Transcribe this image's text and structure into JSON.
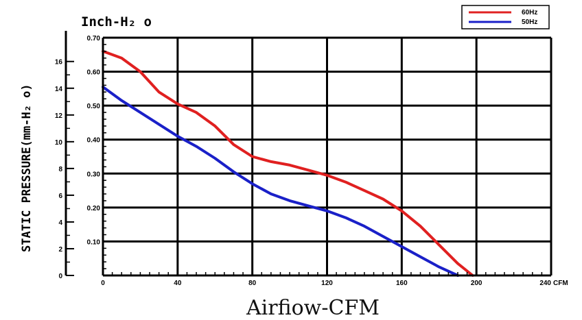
{
  "chart_data": {
    "type": "line",
    "unit_title": "Inch-H₂ o",
    "xlabel": "Airfiow-CFM",
    "ylabel": "STATIC PRESSURE(mm-H₂ o)",
    "xlim": [
      0,
      240
    ],
    "ylim": [
      0,
      0.7
    ],
    "x_ticks": [
      0,
      40,
      80,
      120,
      160,
      200,
      240
    ],
    "x_tick_labels": [
      "0",
      "40",
      "80",
      "120",
      "160",
      "200",
      "240"
    ],
    "x_unit": "CFM",
    "y_ticks_inch": [
      0.1,
      0.2,
      0.3,
      0.4,
      0.5,
      0.6,
      0.7
    ],
    "y_tick_labels_inch": [
      "0.10",
      "0.20",
      "0.30",
      "0.40",
      "0.50",
      "0.60",
      "0.70"
    ],
    "y_ticks_mm": [
      0,
      2,
      4,
      6,
      8,
      10,
      12,
      14,
      16
    ],
    "y_tick_labels_mm": [
      "0",
      "2",
      "4",
      "6",
      "8",
      "10",
      "12",
      "14",
      "16"
    ],
    "grid": true,
    "legend_position": "top-right",
    "series": [
      {
        "name": "60Hz",
        "color": "#e02020",
        "x": [
          0,
          10,
          20,
          30,
          40,
          50,
          60,
          70,
          80,
          90,
          100,
          110,
          120,
          130,
          140,
          150,
          160,
          170,
          180,
          190,
          198
        ],
        "y": [
          0.66,
          0.64,
          0.6,
          0.54,
          0.505,
          0.48,
          0.44,
          0.385,
          0.35,
          0.335,
          0.325,
          0.31,
          0.295,
          0.275,
          0.25,
          0.225,
          0.19,
          0.145,
          0.09,
          0.035,
          0.0
        ]
      },
      {
        "name": "50Hz",
        "color": "#1a20c8",
        "x": [
          0,
          10,
          20,
          30,
          40,
          50,
          60,
          70,
          80,
          90,
          100,
          110,
          120,
          130,
          140,
          150,
          160,
          170,
          180,
          190
        ],
        "y": [
          0.555,
          0.515,
          0.48,
          0.445,
          0.41,
          0.38,
          0.345,
          0.305,
          0.27,
          0.24,
          0.22,
          0.205,
          0.19,
          0.17,
          0.145,
          0.115,
          0.085,
          0.055,
          0.025,
          0.0
        ]
      }
    ]
  }
}
